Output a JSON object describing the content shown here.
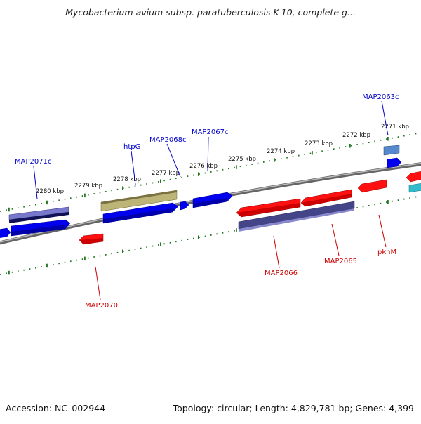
{
  "title": "Mycobacterium avium subsp. paratuberculosis K-10, complete g...",
  "footer": {
    "accession": "Accession: NC_002944",
    "topology": "Topology: circular; Length: 4,829,781 bp; Genes: 4,399"
  },
  "colors": {
    "forward_gene": "#0000ff",
    "reverse_gene": "#ff0000",
    "htpG": "#b8b070",
    "forward_label": "#0000cc",
    "reverse_label": "#cc0000",
    "tick": "#227722",
    "backbone": "#888888"
  },
  "ticks": [
    {
      "kbp": 2280,
      "label": "2280 kbp"
    },
    {
      "kbp": 2279,
      "label": "2279 kbp"
    },
    {
      "kbp": 2278,
      "label": "2278 kbp"
    },
    {
      "kbp": 2277,
      "label": "2277 kbp"
    },
    {
      "kbp": 2276,
      "label": "2276 kbp"
    },
    {
      "kbp": 2275,
      "label": "2275 kbp"
    },
    {
      "kbp": 2274,
      "label": "2274 kbp"
    },
    {
      "kbp": 2273,
      "label": "2273 kbp"
    },
    {
      "kbp": 2272,
      "label": "2272 kbp"
    },
    {
      "kbp": 2271,
      "label": "2271 kbp"
    }
  ],
  "gene_labels": [
    {
      "name": "MAP2071c",
      "strand": "forward"
    },
    {
      "name": "htpG",
      "strand": "forward"
    },
    {
      "name": "MAP2068c",
      "strand": "forward"
    },
    {
      "name": "MAP2067c",
      "strand": "forward"
    },
    {
      "name": "MAP2063c",
      "strand": "forward"
    },
    {
      "name": "MAP2070",
      "strand": "reverse"
    },
    {
      "name": "MAP2066",
      "strand": "reverse"
    },
    {
      "name": "MAP2065",
      "strand": "reverse"
    },
    {
      "name": "pknM",
      "strand": "reverse"
    }
  ]
}
